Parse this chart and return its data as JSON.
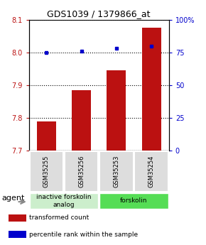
{
  "title": "GDS1039 / 1379866_at",
  "samples": [
    "GSM35255",
    "GSM35256",
    "GSM35253",
    "GSM35254"
  ],
  "bar_values": [
    7.79,
    7.885,
    7.945,
    8.075
  ],
  "percentile_values": [
    75,
    76,
    78,
    80
  ],
  "ylim_left": [
    7.7,
    8.1
  ],
  "ylim_right": [
    0,
    100
  ],
  "yticks_left": [
    7.7,
    7.8,
    7.9,
    8.0,
    8.1
  ],
  "yticks_right": [
    0,
    25,
    50,
    75,
    100
  ],
  "bar_color": "#BB1111",
  "dot_color": "#0000CC",
  "bar_width": 0.55,
  "groups": [
    {
      "label": "inactive forskolin\nanalog",
      "color": "#CCEECC",
      "span": [
        0,
        2
      ]
    },
    {
      "label": "forskolin",
      "color": "#55DD55",
      "span": [
        2,
        4
      ]
    }
  ],
  "agent_label": "agent",
  "legend_items": [
    {
      "color": "#BB1111",
      "label": "transformed count"
    },
    {
      "color": "#0000CC",
      "label": "percentile rank within the sample"
    }
  ],
  "title_fontsize": 9,
  "tick_fontsize": 7,
  "sample_fontsize": 6,
  "group_fontsize": 6.5,
  "legend_fontsize": 6.5,
  "agent_fontsize": 8
}
